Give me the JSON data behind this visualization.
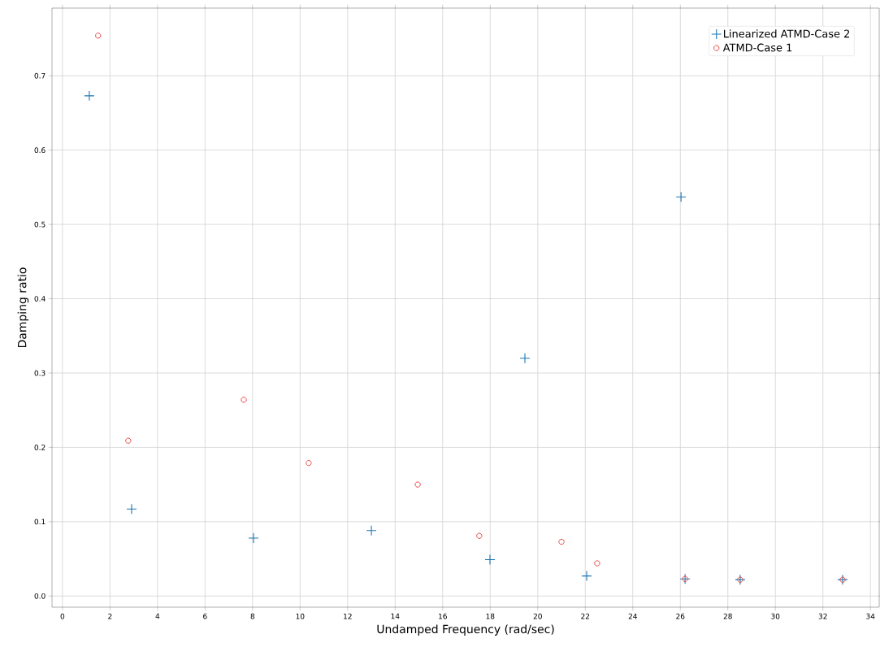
{
  "chart_data": {
    "type": "scatter",
    "xlabel": "Undamped Frequency (rad/sec)",
    "ylabel": "Damping ratio",
    "xlim": [
      -0.44,
      34.37
    ],
    "ylim": [
      -0.015,
      0.791
    ],
    "xticks": [
      0,
      2,
      4,
      6,
      8,
      10,
      12,
      14,
      16,
      18,
      20,
      22,
      24,
      26,
      28,
      30,
      32,
      34
    ],
    "yticks": [
      {
        "value": 0,
        "label": "0.0"
      },
      0.1,
      0.2,
      0.3,
      0.4,
      0.5,
      0.6,
      0.7
    ],
    "grid": true,
    "legend": "top right",
    "series": [
      {
        "name": "Linearized ATMD-Case 2",
        "color": "#1f77b4",
        "marker": "cross",
        "x": [
          1.13,
          2.91,
          8.04,
          13.0,
          17.99,
          19.46,
          22.06,
          26.03,
          26.2,
          28.52,
          32.83
        ],
        "values": [
          0.673,
          0.117,
          0.078,
          0.088,
          0.049,
          0.32,
          0.027,
          0.537,
          0.023,
          0.022,
          0.022
        ]
      },
      {
        "name": "ATMD-Case 1",
        "color": "#e84a4a",
        "marker": "circle",
        "x": [
          1.5,
          2.77,
          7.63,
          10.36,
          14.95,
          17.54,
          21.0,
          22.5,
          26.2,
          28.52,
          32.83
        ],
        "values": [
          0.754,
          0.209,
          0.264,
          0.179,
          0.15,
          0.081,
          0.073,
          0.044,
          0.023,
          0.022,
          0.022
        ]
      }
    ]
  }
}
